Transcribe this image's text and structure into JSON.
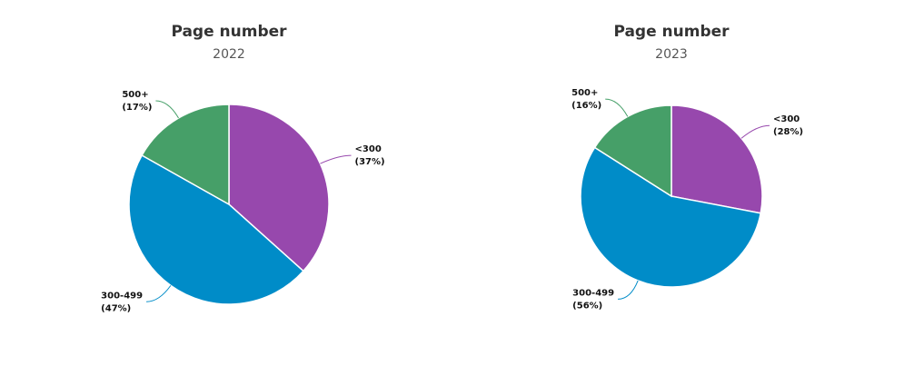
{
  "chart_data": [
    {
      "type": "pie",
      "title": "Page number",
      "subtitle": "2022",
      "categories": [
        "<300",
        "300-499",
        "500+"
      ],
      "values": [
        37,
        47,
        17
      ],
      "value_labels": [
        "(37%)",
        "(47%)",
        "(17%)"
      ],
      "colors": [
        "#9748ad",
        "#008cc8",
        "#469f68"
      ]
    },
    {
      "type": "pie",
      "title": "Page number",
      "subtitle": "2023",
      "categories": [
        "<300",
        "300-499",
        "500+"
      ],
      "values": [
        28,
        56,
        16
      ],
      "value_labels": [
        "(28%)",
        "(56%)",
        "(16%)"
      ],
      "colors": [
        "#9748ad",
        "#008cc8",
        "#469f68"
      ]
    }
  ]
}
